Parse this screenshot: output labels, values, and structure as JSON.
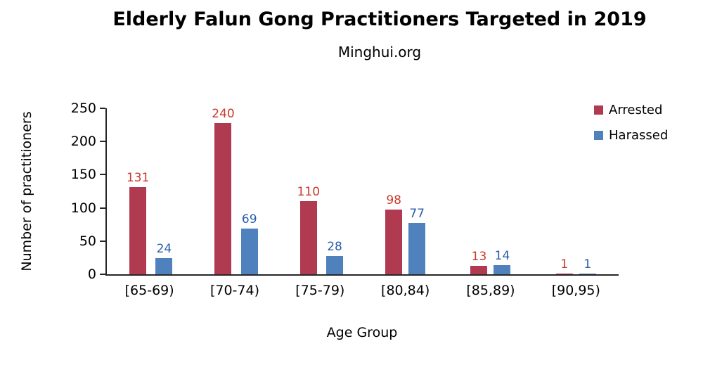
{
  "chart_data": {
    "type": "bar",
    "title": "Elderly Falun Gong Practitioners Targeted in 2019",
    "subtitle": "Minghui.org",
    "xlabel": "Age Group",
    "ylabel": "Number of practitioners",
    "categories": [
      "[65-69)",
      "[70-74)",
      "[75-79)",
      "[80,84)",
      "[85,89)",
      "[90,95)"
    ],
    "series": [
      {
        "name": "Arrested",
        "color": "#b03a4f",
        "label_color": "#c9392b",
        "values": [
          131,
          240,
          110,
          98,
          13,
          1
        ]
      },
      {
        "name": "Harassed",
        "color": "#4f81bd",
        "label_color": "#2a5caa",
        "values": [
          24,
          69,
          28,
          77,
          14,
          1
        ]
      }
    ],
    "ylim": [
      0,
      250
    ],
    "yticks": [
      0,
      50,
      100,
      150,
      200,
      250
    ],
    "legend_position": "top-right",
    "grid": false
  }
}
